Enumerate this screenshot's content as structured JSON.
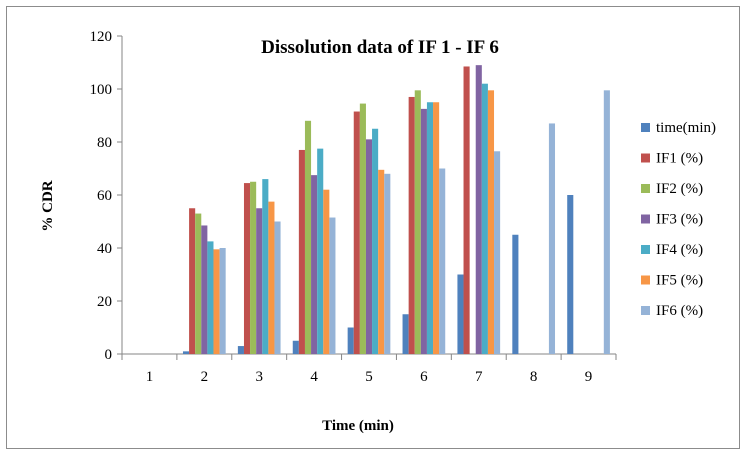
{
  "chart_data": {
    "type": "bar",
    "title": "Dissolution data of  IF 1 - IF 6",
    "xlabel": "Time (min)",
    "ylabel": "% CDR",
    "ylim": [
      0,
      120
    ],
    "yticks": [
      0,
      20,
      40,
      60,
      80,
      100,
      120
    ],
    "grid": false,
    "legend_position": "right",
    "categories": [
      "1",
      "2",
      "3",
      "4",
      "5",
      "6",
      "7",
      "8",
      "9"
    ],
    "series": [
      {
        "name": "time(min)",
        "color": "#4f81bd",
        "values": [
          0,
          1,
          3,
          5,
          10,
          15,
          30,
          45,
          60
        ]
      },
      {
        "name": "IF1 (%)",
        "color": "#c0504d",
        "values": [
          0,
          55,
          64.5,
          77,
          91.5,
          97,
          108.5,
          0,
          0
        ]
      },
      {
        "name": "IF2 (%)",
        "color": "#9bbb59",
        "values": [
          0,
          53,
          65,
          88,
          94.5,
          99.5,
          0,
          0,
          0
        ]
      },
      {
        "name": "IF3 (%)",
        "color": "#8064a2",
        "values": [
          0,
          48.5,
          55,
          67.5,
          81,
          92.5,
          109,
          0,
          0
        ]
      },
      {
        "name": "IF4 (%)",
        "color": "#4bacc6",
        "values": [
          0,
          42.5,
          66,
          77.5,
          85,
          95,
          102,
          0,
          0
        ]
      },
      {
        "name": "IF5 (%)",
        "color": "#f79646",
        "values": [
          0,
          39.5,
          57.5,
          62,
          69.5,
          95,
          99.5,
          0,
          0
        ]
      },
      {
        "name": "IF6 (%)",
        "color": "#95b3d7",
        "values": [
          0,
          40,
          50,
          51.5,
          68,
          70,
          76.5,
          87,
          99.5
        ]
      }
    ]
  }
}
